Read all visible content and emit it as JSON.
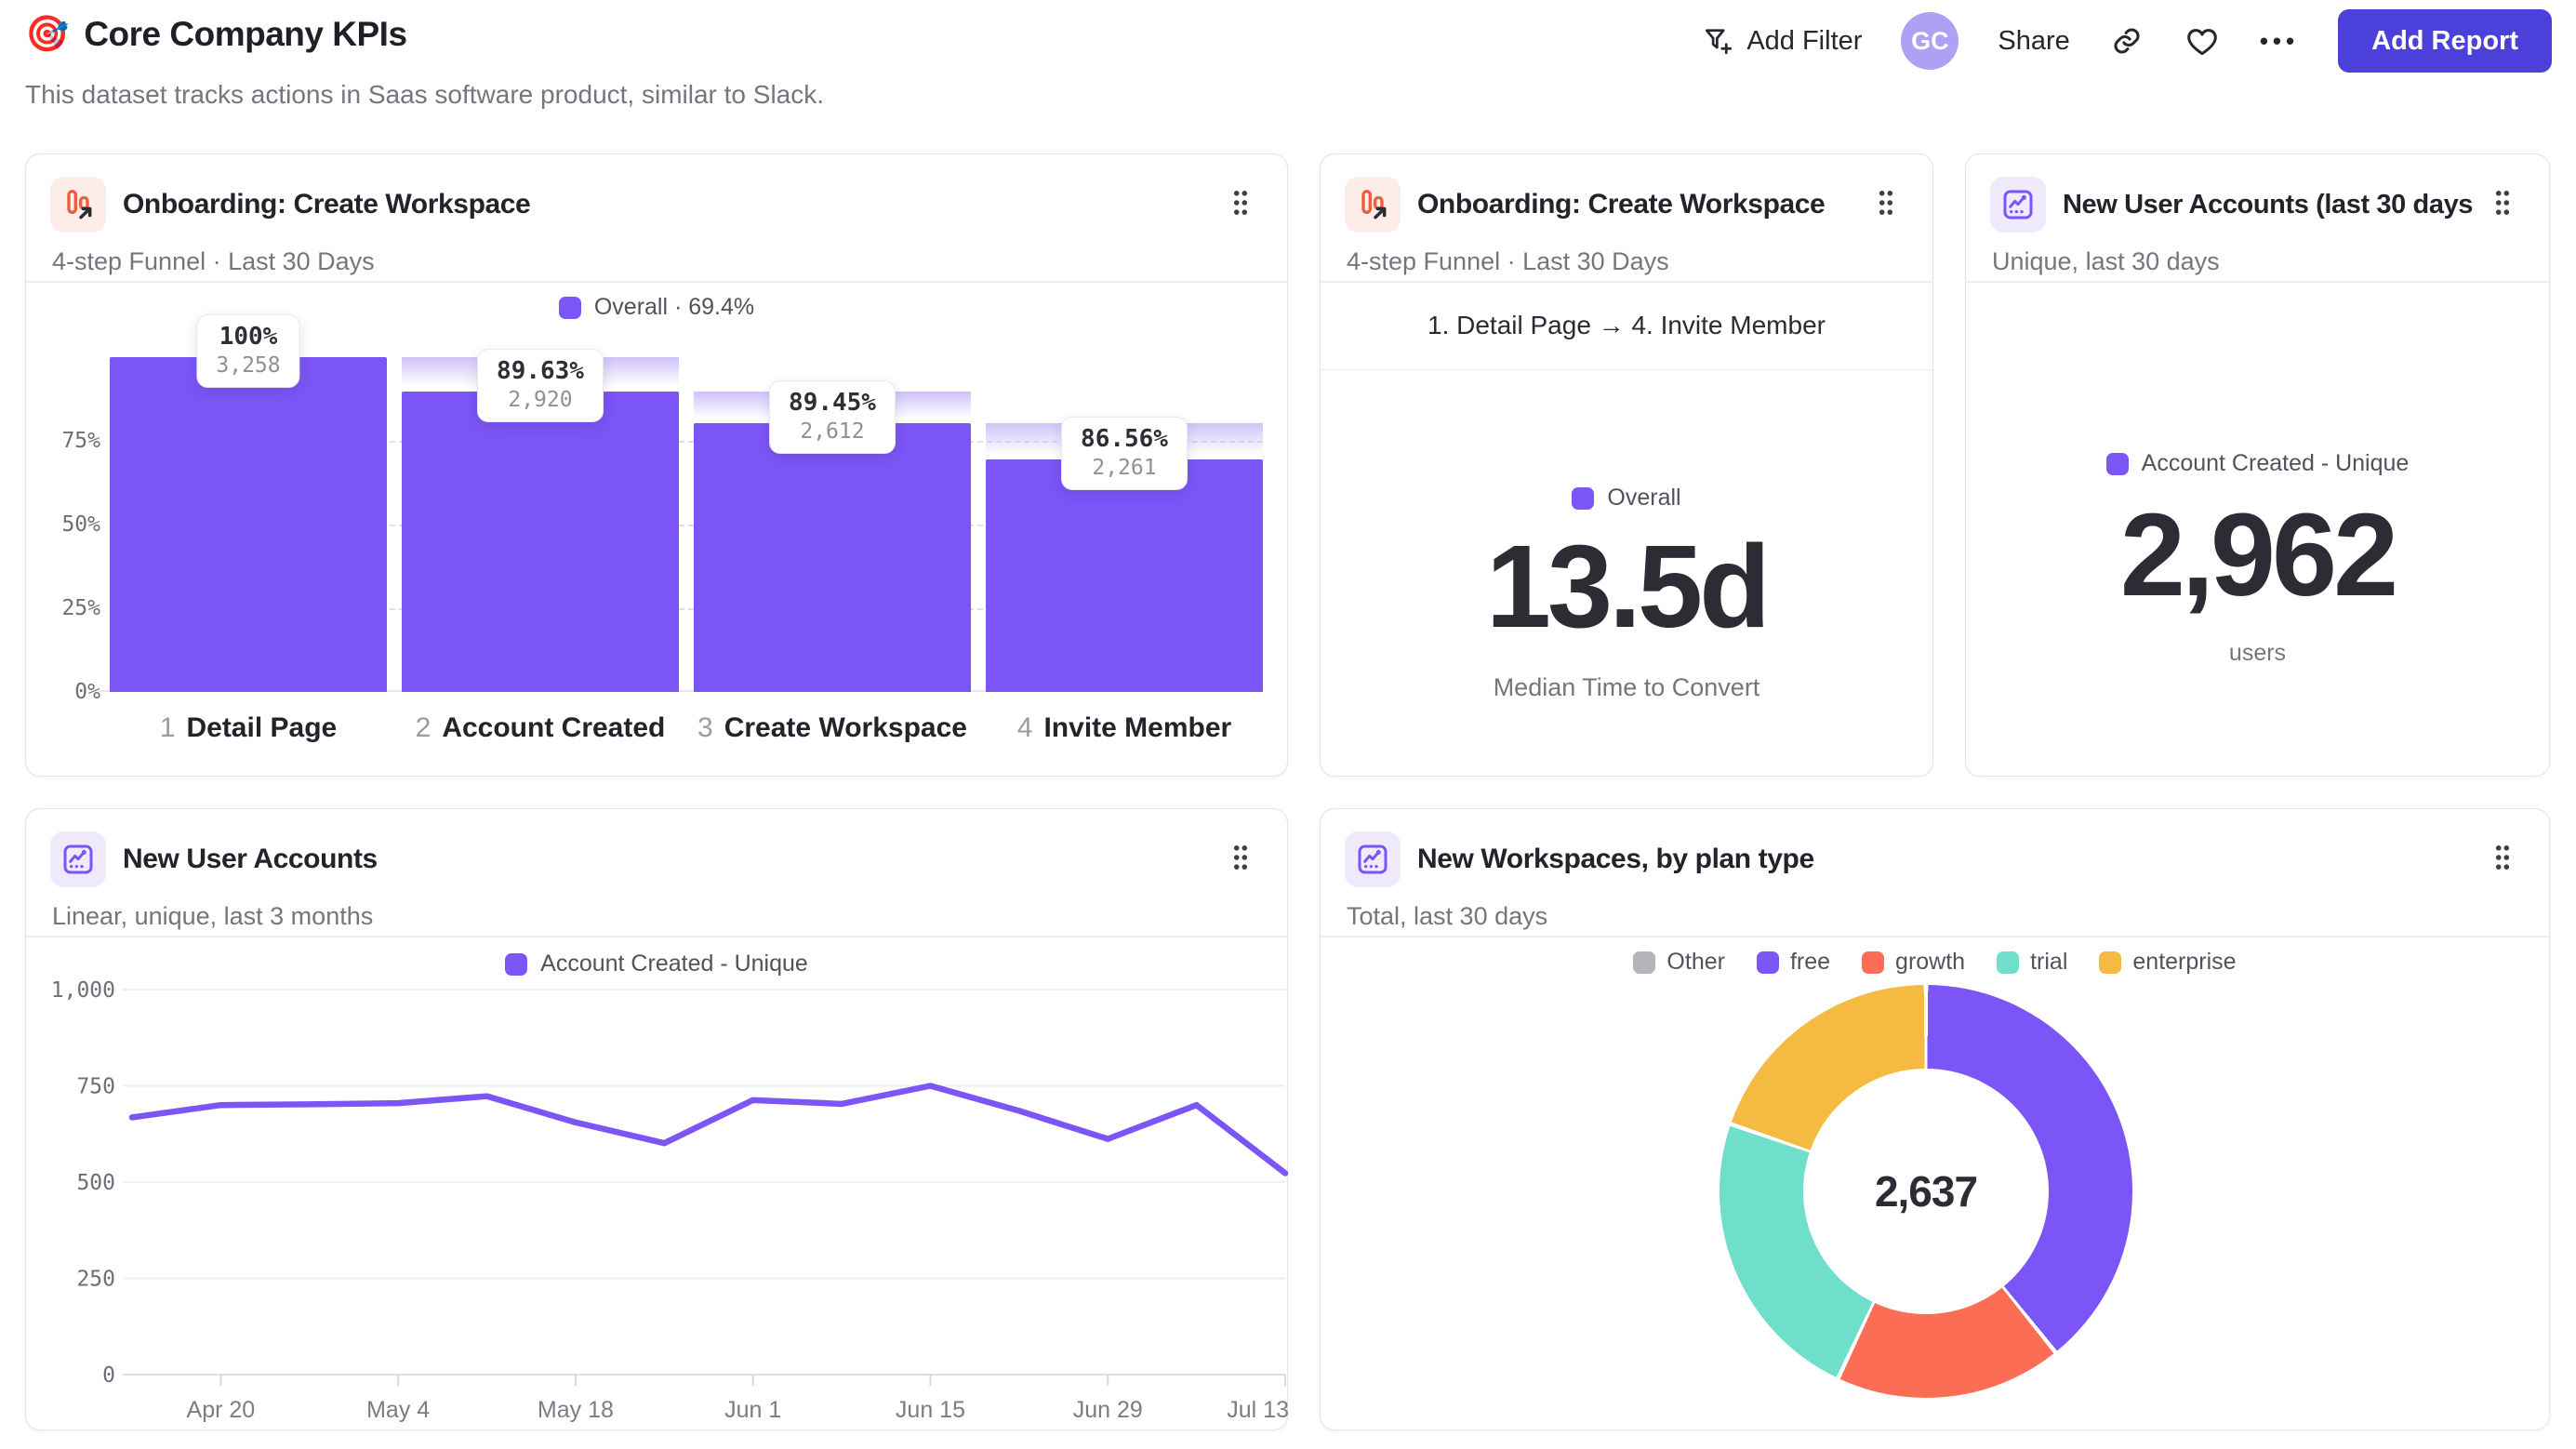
{
  "header": {
    "emoji": "🎯",
    "title": "Core Company KPIs",
    "subtitle": "This dataset tracks actions in Saas software product, similar to Slack.",
    "add_filter_label": "Add Filter",
    "avatar_initials": "GC",
    "share_label": "Share",
    "more_label": "•••",
    "add_report_label": "Add Report",
    "accent_color": "#4C40DB"
  },
  "cards": {
    "funnel": {
      "title": "Onboarding: Create Workspace",
      "subtitle": "4-step Funnel · Last 30 Days",
      "legend": "Overall · 69.4%"
    },
    "time_to_convert": {
      "title": "Onboarding: Create Workspace",
      "subtitle": "4-step Funnel · Last 30 Days",
      "range_label": "1. Detail Page → 4. Invite Member",
      "legend": "Overall",
      "value": "13.5d",
      "caption": "Median Time to Convert"
    },
    "new_accounts_metric": {
      "title": "New User Accounts (last 30 days)",
      "subtitle": "Unique, last 30 days",
      "legend": "Account Created - Unique",
      "value": "2,962",
      "caption": "users"
    },
    "new_accounts_line": {
      "title": "New User Accounts",
      "subtitle": "Linear, unique, last 3 months",
      "legend": "Account Created - Unique"
    },
    "workspaces_donut": {
      "title": "New Workspaces, by plan type",
      "subtitle": "Total, last 30 days",
      "center_value": "2,637"
    }
  },
  "chart_data": [
    {
      "type": "bar",
      "subtype": "funnel",
      "title": "Onboarding: Create Workspace",
      "legend": "Overall · 69.4%",
      "overall_conversion_pct": 69.4,
      "bar_color": "#7B55F6",
      "y_ticks": [
        {
          "value": 0,
          "label": "0%"
        },
        {
          "value": 25,
          "label": "25%"
        },
        {
          "value": 50,
          "label": "50%"
        },
        {
          "value": 75,
          "label": "75%"
        }
      ],
      "steps": [
        {
          "index": 1,
          "label": "Detail Page",
          "count": 3258,
          "count_label": "3,258",
          "conversion_from_previous": "100%",
          "pct_of_first": 100
        },
        {
          "index": 2,
          "label": "Account Created",
          "count": 2920,
          "count_label": "2,920",
          "conversion_from_previous": "89.63%",
          "pct_of_first": 89.63
        },
        {
          "index": 3,
          "label": "Create Workspace",
          "count": 2612,
          "count_label": "2,612",
          "conversion_from_previous": "89.45%",
          "pct_of_first": 80.17
        },
        {
          "index": 4,
          "label": "Invite Member",
          "count": 2261,
          "count_label": "2,261",
          "conversion_from_previous": "86.56%",
          "pct_of_first": 69.4
        }
      ]
    },
    {
      "type": "metric",
      "title": "Onboarding: Create Workspace",
      "range": "1. Detail Page → 4. Invite Member",
      "legend": "Overall",
      "value": "13.5d",
      "caption": "Median Time to Convert"
    },
    {
      "type": "metric",
      "title": "New User Accounts (last 30 days)",
      "legend": "Account Created - Unique",
      "value": "2,962",
      "caption": "users"
    },
    {
      "type": "line",
      "title": "New User Accounts",
      "legend": "Account Created - Unique",
      "line_color": "#7B55F6",
      "ylim": [
        0,
        1000
      ],
      "grid": true,
      "y_ticks": [
        {
          "value": 0,
          "label": "0"
        },
        {
          "value": 250,
          "label": "250"
        },
        {
          "value": 500,
          "label": "500"
        },
        {
          "value": 750,
          "label": "750"
        },
        {
          "value": 1000,
          "label": "1,000"
        }
      ],
      "x_tick_labels": [
        "Apr 20",
        "May 4",
        "May 18",
        "Jun 1",
        "Jun 15",
        "Jun 29",
        "Jul 13"
      ],
      "values": [
        668,
        700,
        702,
        705,
        723,
        655,
        601,
        713,
        703,
        750,
        685,
        612,
        700,
        523
      ]
    },
    {
      "type": "pie",
      "subtype": "donut",
      "title": "New Workspaces, by plan type",
      "center_label": "2,637",
      "total": 2637,
      "legend_position": "top",
      "segments": [
        {
          "label": "Other",
          "color": "#B4B4BA",
          "value": 0
        },
        {
          "label": "free",
          "color": "#7B55F6",
          "value": 1034
        },
        {
          "label": "growth",
          "color": "#FB6D54",
          "value": 469
        },
        {
          "label": "trial",
          "color": "#6FDFCB",
          "value": 614
        },
        {
          "label": "enterprise",
          "color": "#F4BA41",
          "value": 520
        }
      ]
    }
  ]
}
